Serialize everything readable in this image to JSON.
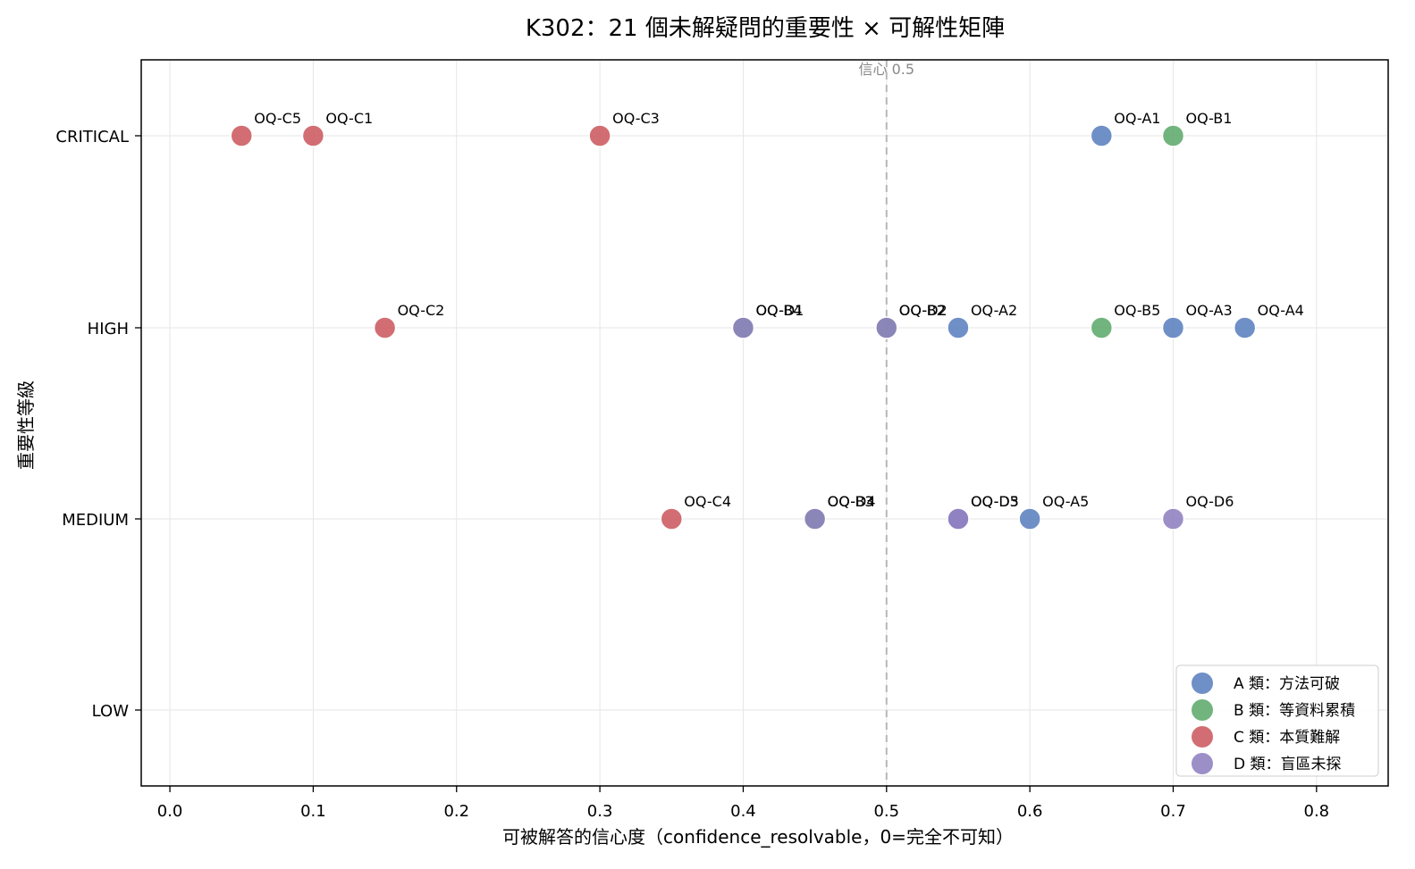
{
  "chart_data": {
    "type": "scatter",
    "title": "K302：21 個未解疑問的重要性 × 可解性矩陣",
    "xlabel": "可被解答的信心度（confidence_resolvable，0=完全不可知）",
    "ylabel": "重要性等級",
    "xlim": [
      -0.02,
      0.85
    ],
    "xticks": [
      "0.0",
      "0.1",
      "0.2",
      "0.3",
      "0.4",
      "0.5",
      "0.6",
      "0.7",
      "0.8"
    ],
    "y_categories": [
      "LOW",
      "MEDIUM",
      "HIGH",
      "CRITICAL"
    ],
    "grid": true,
    "legend_position": "bottom-right",
    "reference_line": {
      "x": 0.5,
      "label": "信心 0.5",
      "style": "dashed",
      "color": "#b0b0b0"
    },
    "series": [
      {
        "name": "A 類：方法可破",
        "color": "#5b7fbf",
        "points": [
          {
            "label": "OQ-A1",
            "x": 0.65,
            "y": "CRITICAL"
          },
          {
            "label": "OQ-A2",
            "x": 0.55,
            "y": "HIGH"
          },
          {
            "label": "OQ-A3",
            "x": 0.7,
            "y": "HIGH"
          },
          {
            "label": "OQ-A4",
            "x": 0.75,
            "y": "HIGH"
          },
          {
            "label": "OQ-A5",
            "x": 0.6,
            "y": "MEDIUM"
          }
        ]
      },
      {
        "name": "B 類：等資料累積",
        "color": "#5faa6b",
        "points": [
          {
            "label": "OQ-B1",
            "x": 0.7,
            "y": "CRITICAL"
          },
          {
            "label": "OQ-B2",
            "x": 0.5,
            "y": "HIGH"
          },
          {
            "label": "OQ-B3",
            "x": 0.45,
            "y": "MEDIUM"
          },
          {
            "label": "OQ-B4",
            "x": 0.4,
            "y": "HIGH"
          },
          {
            "label": "OQ-B5",
            "x": 0.65,
            "y": "HIGH"
          }
        ]
      },
      {
        "name": "C 類：本質難解",
        "color": "#cc5a60",
        "points": [
          {
            "label": "OQ-C1",
            "x": 0.1,
            "y": "CRITICAL"
          },
          {
            "label": "OQ-C2",
            "x": 0.15,
            "y": "HIGH"
          },
          {
            "label": "OQ-C3",
            "x": 0.3,
            "y": "CRITICAL"
          },
          {
            "label": "OQ-C4",
            "x": 0.35,
            "y": "MEDIUM"
          },
          {
            "label": "OQ-C5",
            "x": 0.05,
            "y": "CRITICAL"
          }
        ]
      },
      {
        "name": "D 類：盲區未探",
        "color": "#8e7fc0",
        "points": [
          {
            "label": "OQ-D1",
            "x": 0.4,
            "y": "HIGH"
          },
          {
            "label": "OQ-D2",
            "x": 0.5,
            "y": "HIGH"
          },
          {
            "label": "OQ-D3",
            "x": 0.55,
            "y": "MEDIUM"
          },
          {
            "label": "OQ-D4",
            "x": 0.45,
            "y": "MEDIUM"
          },
          {
            "label": "OQ-D5",
            "x": 0.55,
            "y": "MEDIUM"
          },
          {
            "label": "OQ-D6",
            "x": 0.7,
            "y": "MEDIUM"
          }
        ]
      }
    ]
  }
}
